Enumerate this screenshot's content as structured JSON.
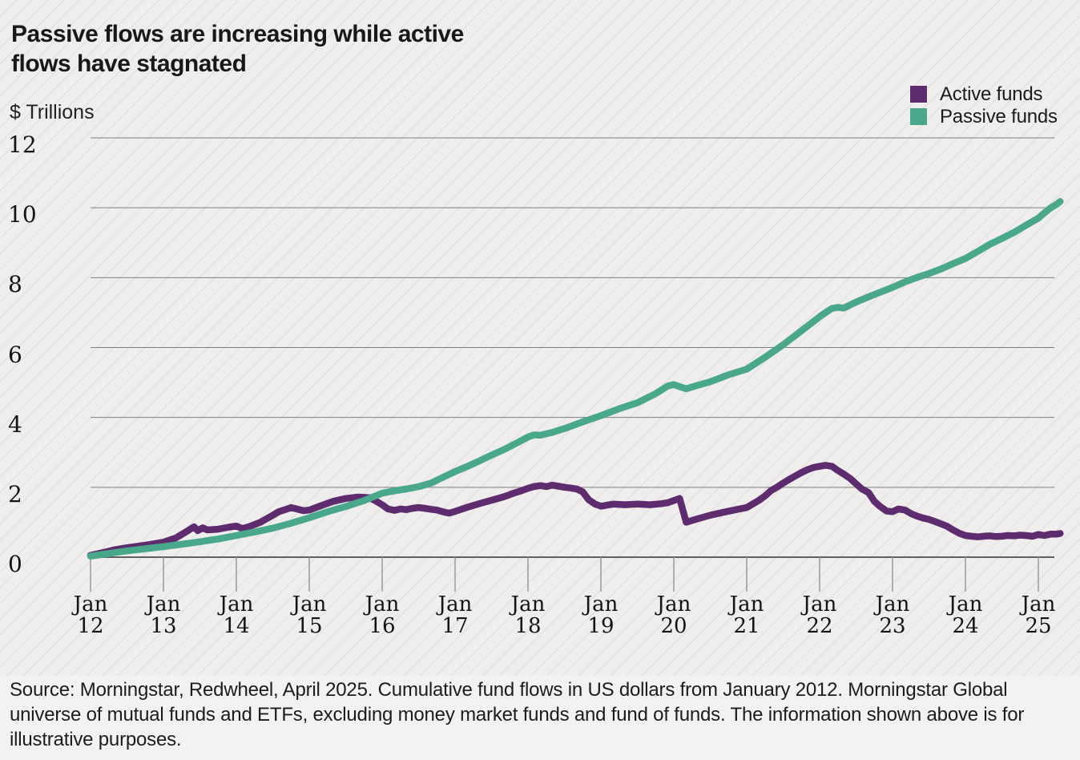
{
  "header": {
    "title_line1": "Passive flows are increasing while active",
    "title_line2": "flows have stagnated",
    "y_axis_unit_label": "$ Trillions"
  },
  "legend": {
    "items": [
      {
        "label": "Active funds",
        "color": "#5e2b6f"
      },
      {
        "label": "Passive funds",
        "color": "#49a78b"
      }
    ]
  },
  "footer": {
    "source_text": "Source: Morningstar, Redwheel, April 2025. Cumulative fund flows in US dollars from January 2012. Morningstar Global universe of mutual funds and ETFs, excluding money market funds and fund of funds. The information shown above is for illustrative purposes."
  },
  "chart_data": {
    "type": "line",
    "title": "Passive flows are increasing while active flows have stagnated",
    "xlabel": "",
    "ylabel": "$ Trillions",
    "ylim": [
      0,
      12
    ],
    "xlim": [
      2012,
      2025.3
    ],
    "grid": "horizontal",
    "legend_position": "top-right",
    "y_ticks": [
      0,
      2,
      4,
      6,
      8,
      10,
      12
    ],
    "x_ticks": [
      {
        "month": "Jan",
        "year": "12",
        "t": 2012
      },
      {
        "month": "Jan",
        "year": "13",
        "t": 2013
      },
      {
        "month": "Jan",
        "year": "14",
        "t": 2014
      },
      {
        "month": "Jan",
        "year": "15",
        "t": 2015
      },
      {
        "month": "Jan",
        "year": "16",
        "t": 2016
      },
      {
        "month": "Jan",
        "year": "17",
        "t": 2017
      },
      {
        "month": "Jan",
        "year": "18",
        "t": 2018
      },
      {
        "month": "Jan",
        "year": "19",
        "t": 2019
      },
      {
        "month": "Jan",
        "year": "20",
        "t": 2020
      },
      {
        "month": "Jan",
        "year": "21",
        "t": 2021
      },
      {
        "month": "Jan",
        "year": "22",
        "t": 2022
      },
      {
        "month": "Jan",
        "year": "23",
        "t": 2023
      },
      {
        "month": "Jan",
        "year": "24",
        "t": 2024
      },
      {
        "month": "Jan",
        "year": "25",
        "t": 2025
      }
    ],
    "series": [
      {
        "name": "Active funds",
        "color": "#5e2b6f",
        "points": [
          [
            2012.0,
            0.05
          ],
          [
            2012.08,
            0.09
          ],
          [
            2012.17,
            0.13
          ],
          [
            2012.25,
            0.17
          ],
          [
            2012.33,
            0.21
          ],
          [
            2012.5,
            0.27
          ],
          [
            2012.67,
            0.32
          ],
          [
            2012.83,
            0.37
          ],
          [
            2013.0,
            0.43
          ],
          [
            2013.17,
            0.55
          ],
          [
            2013.33,
            0.75
          ],
          [
            2013.42,
            0.87
          ],
          [
            2013.47,
            0.76
          ],
          [
            2013.54,
            0.84
          ],
          [
            2013.6,
            0.78
          ],
          [
            2013.75,
            0.8
          ],
          [
            2013.9,
            0.86
          ],
          [
            2014.0,
            0.89
          ],
          [
            2014.08,
            0.82
          ],
          [
            2014.17,
            0.87
          ],
          [
            2014.33,
            1.0
          ],
          [
            2014.5,
            1.2
          ],
          [
            2014.58,
            1.3
          ],
          [
            2014.67,
            1.36
          ],
          [
            2014.75,
            1.42
          ],
          [
            2014.83,
            1.38
          ],
          [
            2014.92,
            1.33
          ],
          [
            2015.0,
            1.35
          ],
          [
            2015.17,
            1.48
          ],
          [
            2015.33,
            1.6
          ],
          [
            2015.5,
            1.68
          ],
          [
            2015.67,
            1.72
          ],
          [
            2015.83,
            1.7
          ],
          [
            2015.92,
            1.6
          ],
          [
            2016.0,
            1.5
          ],
          [
            2016.08,
            1.38
          ],
          [
            2016.17,
            1.34
          ],
          [
            2016.25,
            1.38
          ],
          [
            2016.33,
            1.36
          ],
          [
            2016.42,
            1.4
          ],
          [
            2016.5,
            1.42
          ],
          [
            2016.58,
            1.4
          ],
          [
            2016.67,
            1.37
          ],
          [
            2016.75,
            1.35
          ],
          [
            2016.83,
            1.3
          ],
          [
            2016.92,
            1.26
          ],
          [
            2017.0,
            1.31
          ],
          [
            2017.17,
            1.43
          ],
          [
            2017.33,
            1.53
          ],
          [
            2017.5,
            1.63
          ],
          [
            2017.67,
            1.73
          ],
          [
            2017.83,
            1.85
          ],
          [
            2017.92,
            1.91
          ],
          [
            2018.0,
            1.97
          ],
          [
            2018.08,
            2.02
          ],
          [
            2018.17,
            2.05
          ],
          [
            2018.25,
            2.02
          ],
          [
            2018.33,
            2.06
          ],
          [
            2018.42,
            2.03
          ],
          [
            2018.5,
            2.0
          ],
          [
            2018.58,
            1.98
          ],
          [
            2018.67,
            1.95
          ],
          [
            2018.75,
            1.87
          ],
          [
            2018.83,
            1.65
          ],
          [
            2018.92,
            1.52
          ],
          [
            2019.0,
            1.46
          ],
          [
            2019.17,
            1.52
          ],
          [
            2019.33,
            1.5
          ],
          [
            2019.5,
            1.52
          ],
          [
            2019.67,
            1.5
          ],
          [
            2019.83,
            1.53
          ],
          [
            2019.92,
            1.56
          ],
          [
            2020.0,
            1.62
          ],
          [
            2020.08,
            1.68
          ],
          [
            2020.17,
            1.0
          ],
          [
            2020.25,
            1.05
          ],
          [
            2020.33,
            1.1
          ],
          [
            2020.5,
            1.2
          ],
          [
            2020.67,
            1.28
          ],
          [
            2020.83,
            1.35
          ],
          [
            2021.0,
            1.42
          ],
          [
            2021.08,
            1.52
          ],
          [
            2021.17,
            1.63
          ],
          [
            2021.25,
            1.75
          ],
          [
            2021.33,
            1.9
          ],
          [
            2021.42,
            2.01
          ],
          [
            2021.5,
            2.12
          ],
          [
            2021.58,
            2.22
          ],
          [
            2021.67,
            2.33
          ],
          [
            2021.75,
            2.42
          ],
          [
            2021.83,
            2.5
          ],
          [
            2021.92,
            2.57
          ],
          [
            2022.0,
            2.6
          ],
          [
            2022.08,
            2.63
          ],
          [
            2022.17,
            2.6
          ],
          [
            2022.25,
            2.48
          ],
          [
            2022.33,
            2.38
          ],
          [
            2022.42,
            2.25
          ],
          [
            2022.5,
            2.1
          ],
          [
            2022.58,
            1.95
          ],
          [
            2022.67,
            1.85
          ],
          [
            2022.75,
            1.6
          ],
          [
            2022.83,
            1.45
          ],
          [
            2022.92,
            1.32
          ],
          [
            2023.0,
            1.3
          ],
          [
            2023.08,
            1.38
          ],
          [
            2023.17,
            1.35
          ],
          [
            2023.25,
            1.25
          ],
          [
            2023.33,
            1.18
          ],
          [
            2023.42,
            1.12
          ],
          [
            2023.5,
            1.08
          ],
          [
            2023.58,
            1.02
          ],
          [
            2023.67,
            0.95
          ],
          [
            2023.75,
            0.88
          ],
          [
            2023.83,
            0.78
          ],
          [
            2023.92,
            0.68
          ],
          [
            2024.0,
            0.62
          ],
          [
            2024.08,
            0.6
          ],
          [
            2024.17,
            0.58
          ],
          [
            2024.25,
            0.6
          ],
          [
            2024.33,
            0.61
          ],
          [
            2024.42,
            0.59
          ],
          [
            2024.5,
            0.6
          ],
          [
            2024.58,
            0.62
          ],
          [
            2024.67,
            0.61
          ],
          [
            2024.75,
            0.63
          ],
          [
            2024.83,
            0.62
          ],
          [
            2024.92,
            0.6
          ],
          [
            2025.0,
            0.65
          ],
          [
            2025.08,
            0.62
          ],
          [
            2025.17,
            0.66
          ],
          [
            2025.25,
            0.66
          ],
          [
            2025.3,
            0.68
          ]
        ]
      },
      {
        "name": "Passive funds",
        "color": "#49a78b",
        "points": [
          [
            2012.0,
            0.03
          ],
          [
            2012.17,
            0.08
          ],
          [
            2012.33,
            0.13
          ],
          [
            2012.5,
            0.18
          ],
          [
            2012.75,
            0.24
          ],
          [
            2013.0,
            0.3
          ],
          [
            2013.25,
            0.37
          ],
          [
            2013.5,
            0.44
          ],
          [
            2013.75,
            0.52
          ],
          [
            2014.0,
            0.62
          ],
          [
            2014.25,
            0.72
          ],
          [
            2014.5,
            0.83
          ],
          [
            2014.75,
            0.97
          ],
          [
            2015.0,
            1.13
          ],
          [
            2015.25,
            1.3
          ],
          [
            2015.5,
            1.45
          ],
          [
            2015.75,
            1.62
          ],
          [
            2016.0,
            1.83
          ],
          [
            2016.17,
            1.9
          ],
          [
            2016.33,
            1.95
          ],
          [
            2016.5,
            2.02
          ],
          [
            2016.67,
            2.12
          ],
          [
            2016.83,
            2.28
          ],
          [
            2017.0,
            2.45
          ],
          [
            2017.17,
            2.6
          ],
          [
            2017.33,
            2.75
          ],
          [
            2017.5,
            2.92
          ],
          [
            2017.67,
            3.08
          ],
          [
            2017.83,
            3.25
          ],
          [
            2017.92,
            3.35
          ],
          [
            2018.0,
            3.44
          ],
          [
            2018.08,
            3.5
          ],
          [
            2018.17,
            3.49
          ],
          [
            2018.33,
            3.57
          ],
          [
            2018.5,
            3.68
          ],
          [
            2018.75,
            3.87
          ],
          [
            2019.0,
            4.05
          ],
          [
            2019.25,
            4.25
          ],
          [
            2019.5,
            4.42
          ],
          [
            2019.75,
            4.68
          ],
          [
            2019.92,
            4.9
          ],
          [
            2020.0,
            4.94
          ],
          [
            2020.08,
            4.88
          ],
          [
            2020.17,
            4.82
          ],
          [
            2020.33,
            4.92
          ],
          [
            2020.5,
            5.02
          ],
          [
            2020.75,
            5.22
          ],
          [
            2021.0,
            5.38
          ],
          [
            2021.25,
            5.72
          ],
          [
            2021.5,
            6.08
          ],
          [
            2021.75,
            6.48
          ],
          [
            2021.92,
            6.75
          ],
          [
            2022.0,
            6.88
          ],
          [
            2022.08,
            7.0
          ],
          [
            2022.17,
            7.12
          ],
          [
            2022.25,
            7.15
          ],
          [
            2022.33,
            7.13
          ],
          [
            2022.5,
            7.3
          ],
          [
            2022.67,
            7.45
          ],
          [
            2022.83,
            7.58
          ],
          [
            2023.0,
            7.72
          ],
          [
            2023.17,
            7.88
          ],
          [
            2023.33,
            8.0
          ],
          [
            2023.5,
            8.12
          ],
          [
            2023.67,
            8.25
          ],
          [
            2023.83,
            8.4
          ],
          [
            2024.0,
            8.55
          ],
          [
            2024.17,
            8.75
          ],
          [
            2024.33,
            8.95
          ],
          [
            2024.5,
            9.12
          ],
          [
            2024.67,
            9.3
          ],
          [
            2024.83,
            9.5
          ],
          [
            2025.0,
            9.7
          ],
          [
            2025.08,
            9.85
          ],
          [
            2025.17,
            10.0
          ],
          [
            2025.25,
            10.1
          ],
          [
            2025.3,
            10.18
          ]
        ]
      }
    ],
    "style_colors": {
      "background": "#efeeec",
      "footer_background": "#f3f2f0",
      "gridline": "#7e7e7e",
      "axis_line": "#606060",
      "tick": "#9a9a9a",
      "text": "#1b1b1b"
    }
  }
}
